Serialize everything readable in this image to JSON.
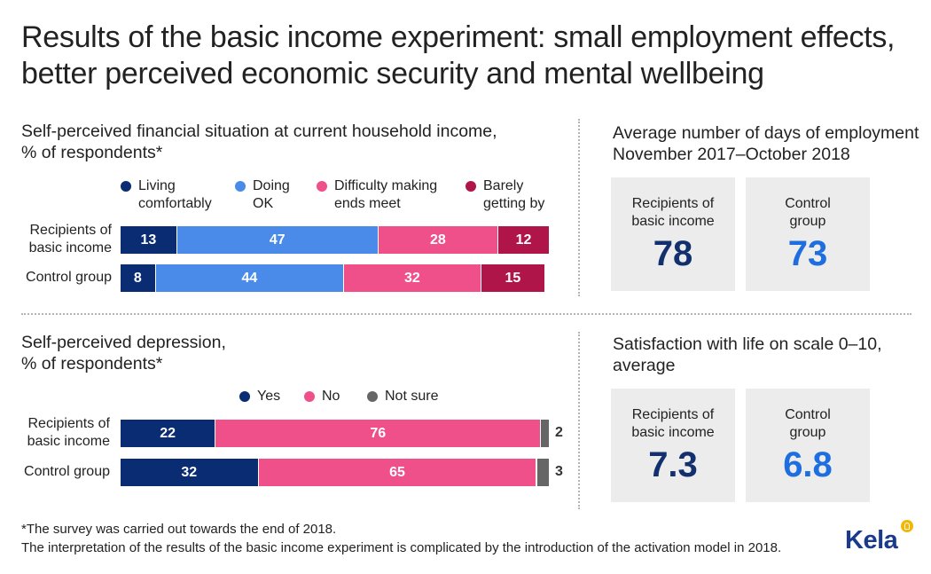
{
  "title": {
    "line1": "Results of the basic income experiment: small employment effects,",
    "line2": "better perceived economic security and mental wellbeing"
  },
  "colors": {
    "navy": "#0a2c73",
    "blue": "#4a8bea",
    "pink": "#f0508a",
    "crimson": "#b01549",
    "gray": "#666666",
    "value_navy": "#12306e",
    "value_blue": "#1e6ee0"
  },
  "chart_data": [
    {
      "type": "bar",
      "orientation": "horizontal-stacked",
      "title": "Self-perceived financial situation at current household income, % of respondents*",
      "title_lines": [
        "Self-perceived financial situation at current household income,",
        "% of respondents*"
      ],
      "categories": [
        "Recipients of basic income",
        "Control group"
      ],
      "category_lines": [
        [
          "Recipients of",
          "basic income"
        ],
        [
          "Control group"
        ]
      ],
      "series": [
        {
          "name": "Living comfortably",
          "legend_lines": [
            "Living",
            "comfortably"
          ],
          "values": [
            13,
            8
          ]
        },
        {
          "name": "Doing OK",
          "legend_lines": [
            "Doing",
            "OK"
          ],
          "values": [
            47,
            44
          ]
        },
        {
          "name": "Difficulty making ends meet",
          "legend_lines": [
            "Difficulty making",
            "ends meet"
          ],
          "values": [
            28,
            32
          ]
        },
        {
          "name": "Barely getting by",
          "legend_lines": [
            "Barely",
            "getting by"
          ],
          "values": [
            12,
            15
          ]
        }
      ],
      "xlim": [
        0,
        100
      ],
      "legend": "top"
    },
    {
      "type": "bar",
      "orientation": "horizontal-stacked",
      "title": "Self-perceived depression, % of respondents*",
      "title_lines": [
        "Self-perceived depression,",
        "% of respondents*"
      ],
      "categories": [
        "Recipients of basic income",
        "Control group"
      ],
      "category_lines": [
        [
          "Recipients of",
          "basic income"
        ],
        [
          "Control group"
        ]
      ],
      "series": [
        {
          "name": "Yes",
          "legend_lines": [
            "Yes"
          ],
          "values": [
            22,
            32
          ]
        },
        {
          "name": "No",
          "legend_lines": [
            "No"
          ],
          "values": [
            76,
            65
          ]
        },
        {
          "name": "Not sure",
          "legend_lines": [
            "Not sure"
          ],
          "values": [
            2,
            3
          ]
        }
      ],
      "xlim": [
        0,
        100
      ],
      "legend": "top"
    },
    {
      "type": "table",
      "title": "Average number of days of employment November 2017–October 2018",
      "title_lines": [
        "Average number of days of employment",
        "November 2017–October 2018"
      ],
      "groups": [
        {
          "label_lines": [
            "Recipients of",
            "basic income"
          ],
          "value": "78"
        },
        {
          "label_lines": [
            "Control",
            "group"
          ],
          "value": "73"
        }
      ]
    },
    {
      "type": "table",
      "title": "Satisfaction with life on scale 0–10, average",
      "title_lines": [
        "Satisfaction with life on scale 0–10,",
        "average"
      ],
      "groups": [
        {
          "label_lines": [
            "Recipients of",
            "basic income"
          ],
          "value": "7.3"
        },
        {
          "label_lines": [
            "Control",
            "group"
          ],
          "value": "6.8"
        }
      ]
    }
  ],
  "footnote": {
    "line1": "*The survey was carried out towards the end of 2018.",
    "line2": "The interpretation of the results of the basic income experiment is complicated by the introduction of the activation model in 2018."
  },
  "logo": {
    "text": "Kela"
  }
}
